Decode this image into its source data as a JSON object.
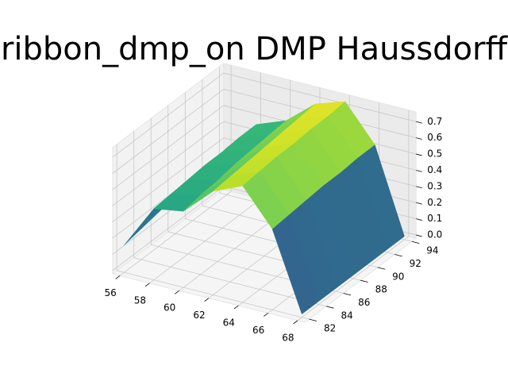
{
  "chart_data": {
    "type": "surface3d",
    "title": "ribbon_dmp_on DMP Haussdorff",
    "colormap": "viridis",
    "x": [
      56,
      58,
      60,
      62,
      64,
      66,
      68
    ],
    "y": [
      82,
      84,
      86,
      88,
      90,
      92,
      94
    ],
    "z": [
      [
        0.15,
        0.42,
        0.45,
        0.62,
        0.7,
        0.48,
        0.0
      ],
      [
        0.17,
        0.43,
        0.47,
        0.63,
        0.71,
        0.49,
        0.0
      ],
      [
        0.19,
        0.44,
        0.48,
        0.64,
        0.72,
        0.5,
        0.0
      ],
      [
        0.21,
        0.45,
        0.5,
        0.65,
        0.72,
        0.51,
        0.0
      ],
      [
        0.23,
        0.45,
        0.51,
        0.66,
        0.73,
        0.51,
        0.0
      ],
      [
        0.25,
        0.46,
        0.52,
        0.67,
        0.73,
        0.52,
        0.0
      ],
      [
        0.27,
        0.46,
        0.53,
        0.68,
        0.74,
        0.52,
        0.0
      ]
    ],
    "xlim": [
      55.5,
      68.5
    ],
    "ylim": [
      81.5,
      94.5
    ],
    "zlim": [
      -0.02,
      0.76
    ],
    "xticks": [
      56,
      58,
      60,
      62,
      64,
      66,
      68
    ],
    "yticks": [
      82,
      84,
      86,
      88,
      90,
      92,
      94
    ],
    "zticks": [
      {
        "value": 0,
        "label": "0.0"
      },
      0.1,
      0.2,
      0.3,
      0.4,
      0.5,
      0.6,
      0.7
    ],
    "grid": true
  }
}
